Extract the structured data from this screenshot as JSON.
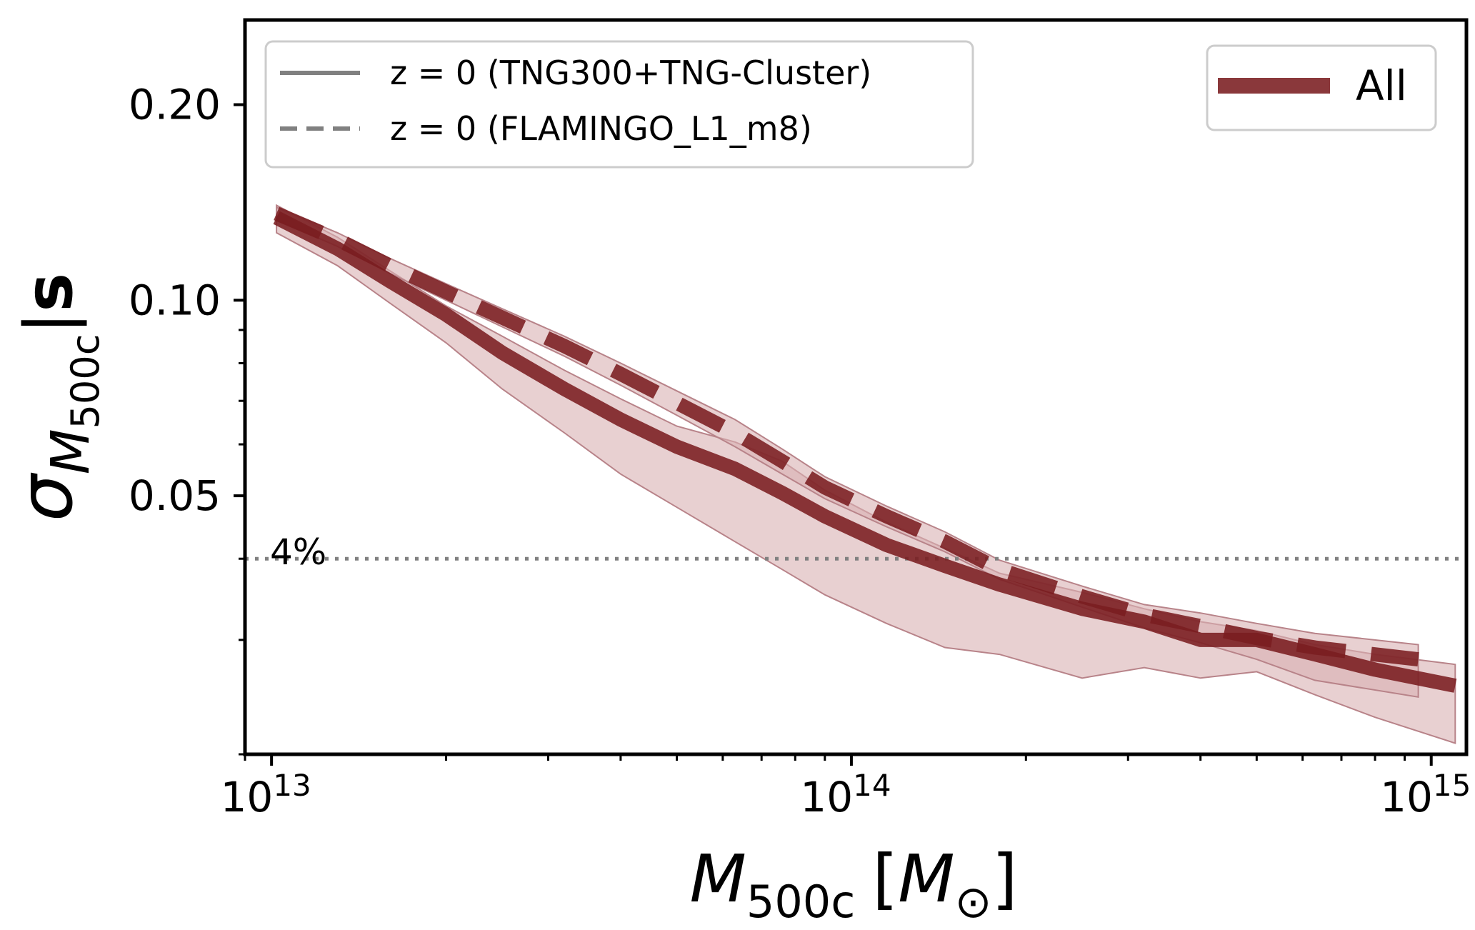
{
  "chart_data": {
    "type": "line",
    "xscale": "log",
    "yscale": "log",
    "xlim": [
      9000000000000.0,
      1150000000000000.0
    ],
    "ylim": [
      0.02,
      0.27
    ],
    "xlabel": {
      "main": "M",
      "sub": "500c",
      "unit_open": "[",
      "unit_main": "M",
      "unit_sub": "⊙",
      "unit_close": "]"
    },
    "ylabel": {
      "main": "σ",
      "sub_main": "M",
      "sub_sub": "500c",
      "cond": "|",
      "bold": "s"
    },
    "x_ticks": [
      {
        "value": 10000000000000.0,
        "base": "10",
        "exp": "13"
      },
      {
        "value": 100000000000000.0,
        "base": "10",
        "exp": "14"
      },
      {
        "value": 1000000000000000.0,
        "base": "10",
        "exp": "15"
      }
    ],
    "y_ticks": [
      {
        "value": 0.05,
        "label": "0.05"
      },
      {
        "value": 0.1,
        "label": "0.10"
      },
      {
        "value": 0.2,
        "label": "0.20"
      }
    ],
    "y_minor_ticks": [
      0.02,
      0.03,
      0.04,
      0.06,
      0.07,
      0.08,
      0.09,
      0.3
    ],
    "x_minor_ticks": [
      9000000000000.0,
      20000000000000.0,
      30000000000000.0,
      40000000000000.0,
      50000000000000.0,
      60000000000000.0,
      70000000000000.0,
      80000000000000.0,
      90000000000000.0,
      200000000000000.0,
      300000000000000.0,
      400000000000000.0,
      500000000000000.0,
      600000000000000.0,
      700000000000000.0,
      800000000000000.0,
      900000000000000.0
    ],
    "color": "#7a1c20",
    "band_color": "#d9b0b3",
    "band_edge_color": "#b88389",
    "series": [
      {
        "name": "z = 0 (TNG300+TNG-Cluster)",
        "style": "solid",
        "x": [
          10200000000000.0,
          13000000000000.0,
          16000000000000.0,
          20000000000000.0,
          25000000000000.0,
          32000000000000.0,
          40000000000000.0,
          50000000000000.0,
          63000000000000.0,
          76000000000000.0,
          90000000000000.0,
          115000000000000.0,
          145000000000000.0,
          180000000000000.0,
          250000000000000.0,
          320000000000000.0,
          400000000000000.0,
          500000000000000.0,
          630000000000000.0,
          800000000000000.0,
          1100000000000000.0
        ],
        "y": [
          0.134,
          0.12,
          0.107,
          0.095,
          0.083,
          0.073,
          0.0655,
          0.0595,
          0.055,
          0.0505,
          0.0465,
          0.042,
          0.039,
          0.0365,
          0.0335,
          0.032,
          0.03,
          0.03,
          0.0285,
          0.027,
          0.0255
        ],
        "lower": [
          0.127,
          0.113,
          0.099,
          0.086,
          0.073,
          0.0625,
          0.054,
          0.048,
          0.0425,
          0.0385,
          0.0352,
          0.0318,
          0.0292,
          0.0285,
          0.0262,
          0.0272,
          0.0262,
          0.0268,
          0.0247,
          0.0228,
          0.0208
        ],
        "upper": [
          0.14,
          0.125,
          0.111,
          0.098,
          0.088,
          0.078,
          0.0705,
          0.064,
          0.0605,
          0.0565,
          0.051,
          0.0455,
          0.0415,
          0.038,
          0.0355,
          0.0335,
          0.032,
          0.031,
          0.0295,
          0.0285,
          0.0275
        ]
      },
      {
        "name": "z = 0 (FLAMINGO_L1_m8)",
        "style": "dashed",
        "x": [
          10200000000000.0,
          13000000000000.0,
          16000000000000.0,
          20000000000000.0,
          25000000000000.0,
          32000000000000.0,
          40000000000000.0,
          50000000000000.0,
          63000000000000.0,
          76000000000000.0,
          90000000000000.0,
          115000000000000.0,
          145000000000000.0,
          180000000000000.0,
          250000000000000.0,
          320000000000000.0,
          400000000000000.0,
          500000000000000.0,
          630000000000000.0,
          950000000000000.0
        ],
        "y": [
          0.136,
          0.124,
          0.113,
          0.103,
          0.094,
          0.085,
          0.077,
          0.0695,
          0.0625,
          0.0565,
          0.0515,
          0.0465,
          0.0425,
          0.0385,
          0.035,
          0.0328,
          0.0315,
          0.0302,
          0.0292,
          0.028
        ],
        "lower": [
          0.133,
          0.121,
          0.11,
          0.1,
          0.091,
          0.082,
          0.074,
          0.0665,
          0.0595,
          0.054,
          0.0495,
          0.0448,
          0.041,
          0.0372,
          0.0337,
          0.0313,
          0.0297,
          0.028,
          0.026,
          0.0245
        ],
        "upper": [
          0.139,
          0.127,
          0.116,
          0.106,
          0.097,
          0.088,
          0.08,
          0.0725,
          0.0655,
          0.059,
          0.0535,
          0.0482,
          0.044,
          0.0398,
          0.0363,
          0.034,
          0.033,
          0.0318,
          0.0307,
          0.0295
        ]
      }
    ],
    "reference_line": {
      "y": 0.04,
      "style": "dotted",
      "color": "#808080",
      "label": "4%"
    },
    "legends": [
      {
        "position": "top-left",
        "entries": [
          {
            "label": "z = 0 (TNG300+TNG-Cluster)",
            "style": "solid",
            "color": "#808080"
          },
          {
            "label": "z = 0 (FLAMINGO_L1_m8)",
            "style": "dashed",
            "color": "#808080"
          }
        ]
      },
      {
        "position": "top-right",
        "entries": [
          {
            "label": "All",
            "style": "solid",
            "color": "#7a1c20"
          }
        ]
      }
    ]
  }
}
